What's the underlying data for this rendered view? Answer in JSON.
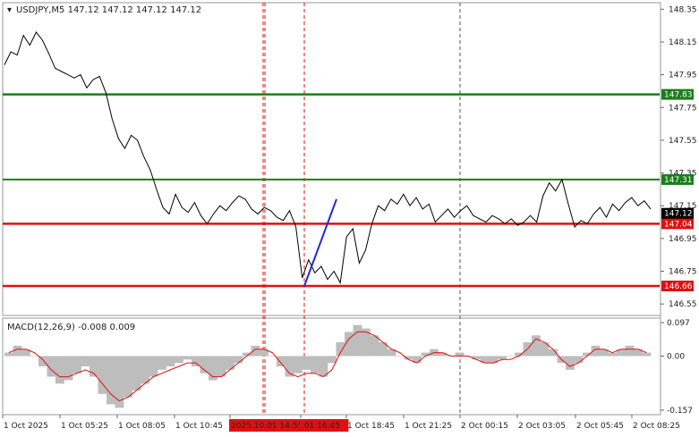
{
  "chart_data": [
    {
      "type": "line",
      "title": "USDJPY,M5  147.12 147.12 147.12 147.12",
      "symbol": "USDJPY,M5",
      "ohlc_readout": "147.12 147.12 147.12 147.12",
      "ylim": [
        146.48,
        148.39
      ],
      "y_ticks": [
        "148.35",
        "148.15",
        "147.95",
        "147.75",
        "147.55",
        "147.35",
        "147.15",
        "146.95",
        "146.75",
        "146.55"
      ],
      "x_ticks": [
        "1 Oct 2025",
        "1 Oct 05:25",
        "1 Oct 08:05",
        "1 Oct 10:45",
        "2025.10.01 14:55",
        ".01 16:45",
        "1 Oct 18:45",
        "1 Oct 21:25",
        "2 Oct 00:15",
        "2 Oct 03:05",
        "2 Oct 05:45",
        "2 Oct 08:25"
      ],
      "x_tick_highlighted": [
        "2025.10.01 14:55",
        ".01 16:45"
      ],
      "levels": [
        {
          "label": "147.83",
          "value": 147.83,
          "color": "#1a7f1a",
          "kind": "green"
        },
        {
          "label": "147.31",
          "value": 147.31,
          "color": "#1a7f1a",
          "kind": "green"
        },
        {
          "label": "147.04",
          "value": 147.04,
          "color": "#e01010",
          "kind": "red"
        },
        {
          "label": "146.66",
          "value": 146.66,
          "color": "#e01010",
          "kind": "red"
        }
      ],
      "current_price": {
        "label": "147.12",
        "value": 147.12
      },
      "price_series": [
        148.01,
        148.09,
        148.07,
        148.19,
        148.13,
        148.21,
        148.16,
        148.08,
        147.99,
        147.97,
        147.95,
        147.93,
        147.95,
        147.87,
        147.92,
        147.94,
        147.84,
        147.68,
        147.56,
        147.5,
        147.58,
        147.55,
        147.45,
        147.37,
        147.25,
        147.14,
        147.1,
        147.22,
        147.14,
        147.11,
        147.17,
        147.09,
        147.04,
        147.1,
        147.15,
        147.12,
        147.17,
        147.21,
        147.19,
        147.13,
        147.1,
        147.14,
        147.12,
        147.08,
        147.06,
        147.12,
        147.02,
        146.71,
        146.82,
        146.74,
        146.78,
        146.7,
        146.75,
        146.68,
        146.96,
        147.01,
        146.8,
        146.88,
        147.04,
        147.15,
        147.12,
        147.19,
        147.16,
        147.22,
        147.15,
        147.2,
        147.13,
        147.16,
        147.05,
        147.09,
        147.13,
        147.08,
        147.12,
        147.15,
        147.09,
        147.07,
        147.05,
        147.09,
        147.07,
        147.04,
        147.07,
        147.03,
        147.05,
        147.09,
        147.05,
        147.21,
        147.29,
        147.24,
        147.31,
        147.16,
        147.02,
        147.06,
        147.04,
        147.1,
        147.14,
        147.08,
        147.16,
        147.12,
        147.17,
        147.2,
        147.15,
        147.18,
        147.13
      ],
      "blue_segment": {
        "from": 146.66,
        "to": 147.19
      },
      "vlines": [
        "1 Oct 12:55",
        "1 Oct 14:55",
        "1 Oct 16:45",
        "1 Oct 23:55"
      ]
    },
    {
      "type": "bar",
      "title": "MACD(12,26,9) -0.008 0.009",
      "label": "MACD(12,26,9)",
      "values_readout": "-0.008 0.009",
      "ylim": [
        -0.17,
        0.11
      ],
      "y_ticks": [
        "0.097",
        "0.00",
        "-0.157"
      ],
      "histogram": [
        0.01,
        0.03,
        0.02,
        0.0,
        -0.03,
        -0.06,
        -0.08,
        -0.07,
        -0.05,
        -0.03,
        -0.06,
        -0.11,
        -0.14,
        -0.15,
        -0.12,
        -0.1,
        -0.08,
        -0.06,
        -0.04,
        -0.03,
        -0.02,
        -0.01,
        -0.03,
        -0.05,
        -0.07,
        -0.06,
        -0.04,
        -0.02,
        0.01,
        0.03,
        0.02,
        0.0,
        -0.03,
        -0.06,
        -0.05,
        -0.04,
        -0.05,
        -0.06,
        -0.02,
        0.04,
        0.07,
        0.09,
        0.08,
        0.06,
        0.04,
        0.02,
        0.0,
        -0.01,
        -0.02,
        0.01,
        0.02,
        0.01,
        0.0,
        0.01,
        0.0,
        -0.01,
        -0.02,
        -0.02,
        -0.01,
        0.0,
        0.01,
        0.04,
        0.06,
        0.04,
        0.02,
        -0.02,
        -0.04,
        -0.02,
        0.01,
        0.03,
        0.02,
        0.01,
        0.02,
        0.03,
        0.02,
        0.01
      ],
      "signal": [
        0.01,
        0.02,
        0.02,
        0.01,
        -0.01,
        -0.04,
        -0.06,
        -0.06,
        -0.05,
        -0.04,
        -0.05,
        -0.08,
        -0.11,
        -0.13,
        -0.12,
        -0.1,
        -0.08,
        -0.06,
        -0.05,
        -0.04,
        -0.03,
        -0.02,
        -0.02,
        -0.04,
        -0.06,
        -0.06,
        -0.04,
        -0.02,
        0.0,
        0.02,
        0.02,
        0.01,
        -0.02,
        -0.05,
        -0.06,
        -0.05,
        -0.05,
        -0.06,
        -0.04,
        0.01,
        0.05,
        0.07,
        0.07,
        0.06,
        0.04,
        0.02,
        0.01,
        -0.01,
        -0.02,
        0.0,
        0.01,
        0.01,
        0.0,
        0.0,
        0.0,
        -0.01,
        -0.02,
        -0.02,
        -0.01,
        -0.01,
        0.0,
        0.02,
        0.05,
        0.04,
        0.02,
        -0.01,
        -0.03,
        -0.02,
        0.0,
        0.02,
        0.02,
        0.01,
        0.02,
        0.02,
        0.02,
        0.01
      ]
    }
  ]
}
